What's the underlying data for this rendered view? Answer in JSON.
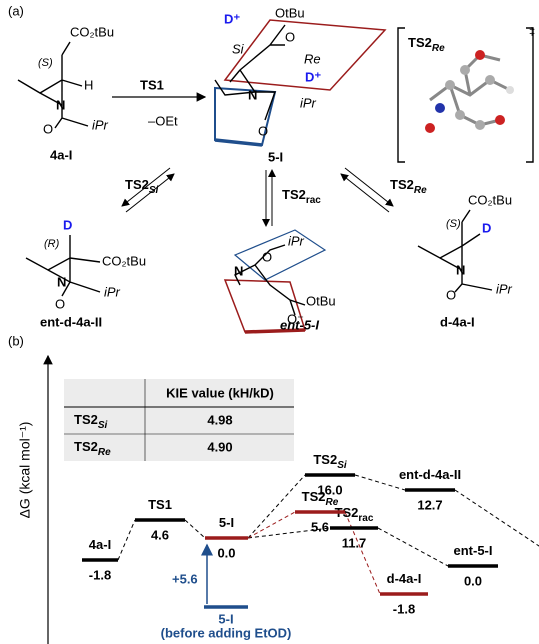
{
  "panel_a": {
    "label": "(a)",
    "reactant": {
      "name": "4a-I",
      "stereo": "(S)",
      "groups": [
        "CO₂tBu",
        "H",
        "N",
        "O",
        "iPr"
      ]
    },
    "base": "–OEt",
    "step1": "TS1",
    "enolate": {
      "name": "5-I",
      "groups": [
        "OtBu",
        "O",
        "N",
        "O",
        "iPr"
      ],
      "faces": [
        "Si",
        "Re"
      ],
      "deuterons": [
        "D⁺",
        "D⁺"
      ]
    },
    "ts_box": {
      "name": "TS2",
      "sub": "Re",
      "dagger": "‡"
    },
    "paths": [
      {
        "name": "TS2",
        "sub": "Si"
      },
      {
        "name": "TS2",
        "sub": "rac"
      },
      {
        "name": "TS2",
        "sub": "Re"
      }
    ],
    "ent_d": {
      "name": "ent-d-4a-II",
      "stereo": "(R)",
      "groups": [
        "D",
        "CO₂tBu",
        "N",
        "O",
        "iPr"
      ]
    },
    "ent5": {
      "name": "ent-5-I",
      "groups": [
        "iPr",
        "O",
        "N",
        "OtBu",
        "O⁻"
      ]
    },
    "d4a": {
      "name": "d-4a-I",
      "stereo": "(S)",
      "groups": [
        "CO₂tBu",
        "D",
        "N",
        "O",
        "iPr"
      ]
    }
  },
  "panel_b": {
    "label": "(b)",
    "y_axis": "ΔG (kcal mol⁻¹)",
    "table": {
      "header": "KIE value (kH/kD)",
      "rows": [
        [
          {
            "name": "TS2",
            "sub": "Si"
          },
          "4.98"
        ],
        [
          {
            "name": "TS2",
            "sub": "Re"
          },
          "4.90"
        ]
      ]
    },
    "levels": [
      {
        "name": "4a-I",
        "energy": "-1.8"
      },
      {
        "name": "TS1",
        "energy": "4.6"
      },
      {
        "name": "5-I",
        "energy": "0.0"
      },
      {
        "name": "TS2",
        "sub": "Si",
        "energy": "16.0"
      },
      {
        "name": "ent-d-4a-II",
        "energy": "12.7"
      },
      {
        "name": "TS2",
        "sub": "rac",
        "energy": "11.7"
      },
      {
        "name": "TS2",
        "sub": "Re",
        "energy": "5.6"
      },
      {
        "name": "d-4a-I",
        "energy": "-1.8"
      },
      {
        "name": "ent-5-I",
        "energy": "0.0"
      }
    ],
    "reference": {
      "name": "5-I",
      "note": "(before adding EtOD)",
      "shift": "+5.6"
    }
  }
}
